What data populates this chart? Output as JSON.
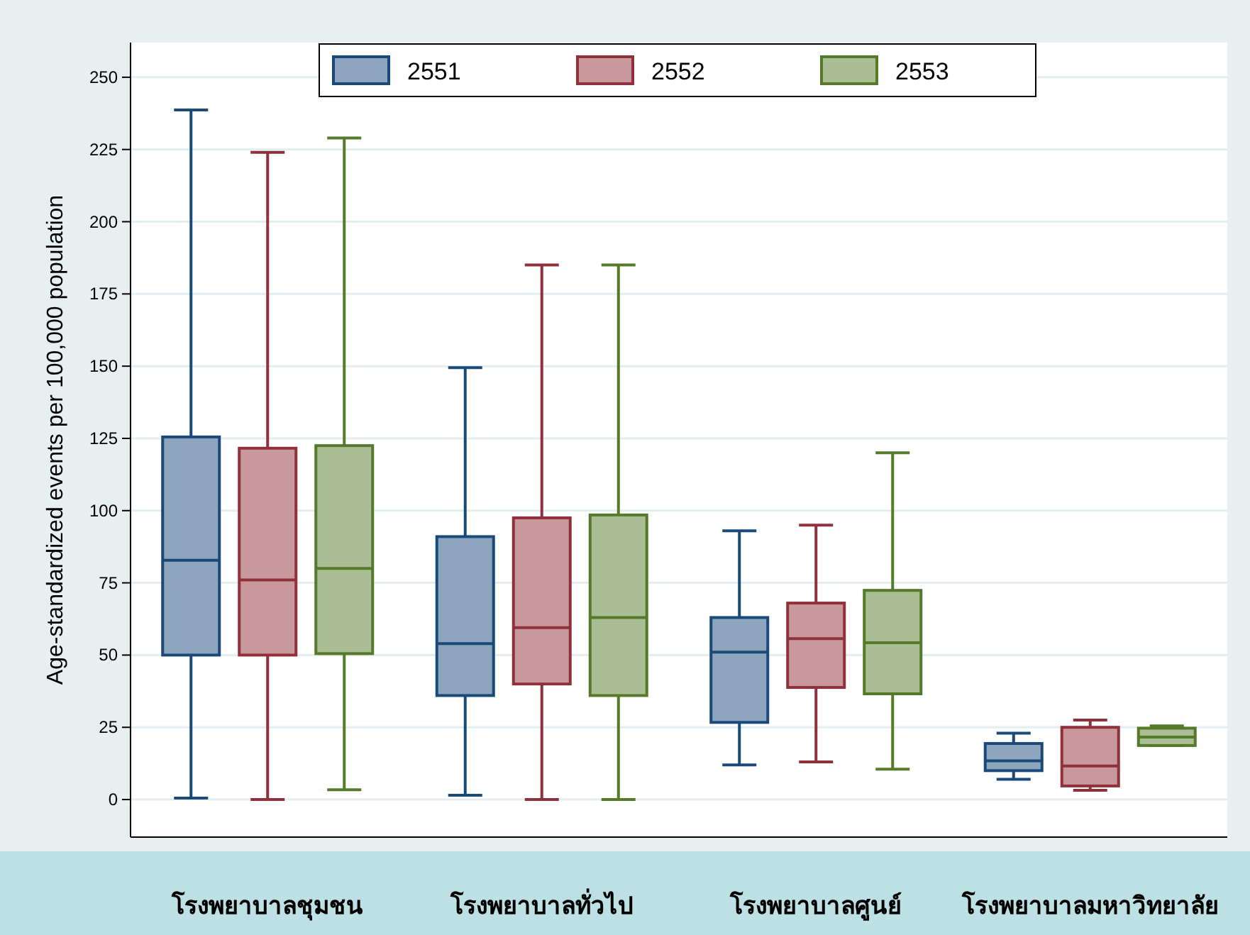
{
  "chart_data": {
    "type": "box",
    "ylabel": "Age-standardized events per 100,000 population",
    "categories": [
      "โรงพยาบาลชุมชน",
      "โรงพยาบาลทั่วไป",
      "โรงพยาบาลศูนย์",
      "โรงพยาบาลมหาวิทยาลัย"
    ],
    "series": [
      {
        "name": "2551",
        "color": "#1a4a7a",
        "boxes": [
          {
            "low": 0.5,
            "q1": 50,
            "median": 82.8,
            "q3": 125.5,
            "high": 238.7
          },
          {
            "low": 1.5,
            "q1": 36,
            "median": 54,
            "q3": 91,
            "high": 149.5
          },
          {
            "low": 12,
            "q1": 26.7,
            "median": 51,
            "q3": 63,
            "high": 93
          },
          {
            "low": 7,
            "q1": 10,
            "median": 13.4,
            "q3": 19.4,
            "high": 23
          }
        ]
      },
      {
        "name": "2552",
        "color": "#90303a",
        "boxes": [
          {
            "low": 0,
            "q1": 50,
            "median": 76,
            "q3": 121.6,
            "high": 224
          },
          {
            "low": 0,
            "q1": 40,
            "median": 59.5,
            "q3": 97.5,
            "high": 185
          },
          {
            "low": 13,
            "q1": 38.8,
            "median": 55.7,
            "q3": 68,
            "high": 95
          },
          {
            "low": 3.2,
            "q1": 4.7,
            "median": 11.6,
            "q3": 25,
            "high": 27.5
          }
        ]
      },
      {
        "name": "2553",
        "color": "#557a2a",
        "boxes": [
          {
            "low": 3.4,
            "q1": 50.5,
            "median": 80,
            "q3": 122.5,
            "high": 229
          },
          {
            "low": 0,
            "q1": 36,
            "median": 63,
            "q3": 98.5,
            "high": 185
          },
          {
            "low": 10.5,
            "q1": 36.6,
            "median": 54.3,
            "q3": 72.4,
            "high": 120
          },
          {
            "low": 18.7,
            "q1": 18.7,
            "median": 21.6,
            "q3": 24.7,
            "high": 25.5
          }
        ]
      }
    ],
    "ylim": [
      -13,
      262
    ],
    "yticks": [
      0,
      25,
      50,
      75,
      100,
      125,
      150,
      175,
      200,
      225,
      250
    ],
    "grid": "y",
    "legend": "top"
  }
}
